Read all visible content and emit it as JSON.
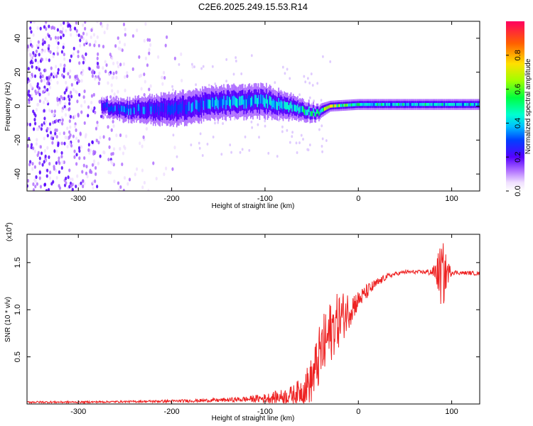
{
  "title": "C2E6.2025.249.15.53.R14",
  "chart_data": [
    {
      "type": "heatmap",
      "title": "C2E6.2025.249.15.53.R14",
      "xlabel": "Height of straight line (km)",
      "ylabel": "Frequency (Hz)",
      "xlim": [
        -355,
        130
      ],
      "ylim": [
        -50,
        50
      ],
      "x_ticks": [
        -300,
        -200,
        -100,
        0,
        100
      ],
      "y_ticks": [
        -40,
        -20,
        0,
        20,
        40
      ],
      "x_tick_labels": [
        "-300",
        "-200",
        "-100",
        "0",
        "100"
      ],
      "y_tick_labels": [
        "-40",
        "-20",
        "0",
        "20",
        "40"
      ],
      "colorbar": {
        "label": "Normalized spectral amplitude",
        "range": [
          0,
          1
        ],
        "ticks": [
          0.0,
          0.2,
          0.4,
          0.6,
          0.8
        ],
        "tick_labels": [
          "0.0",
          "0.2",
          "0.4",
          "0.6",
          "0.8"
        ]
      },
      "signal_band": {
        "description_points_x": [
          -275,
          -250,
          -200,
          -150,
          -100,
          -60,
          -45,
          -30,
          0,
          50,
          100,
          130
        ],
        "center_freq": [
          0,
          -2,
          -2,
          2,
          3,
          -2,
          -4,
          0,
          1,
          1,
          1,
          1
        ],
        "half_width": [
          3,
          4,
          6,
          6,
          6,
          4,
          3,
          2,
          2,
          2,
          2,
          2
        ],
        "amplitude": [
          0.3,
          0.35,
          0.3,
          0.4,
          0.45,
          0.45,
          0.5,
          0.7,
          0.5,
          0.45,
          0.45,
          0.45
        ]
      },
      "noise_extent_x": [
        -355,
        -170
      ]
    },
    {
      "type": "line",
      "xlabel": "Height of straight line (km)",
      "ylabel": "SNR (10 * v/v)",
      "y_scale_label": "(x10",
      "y_scale_exponent": "4",
      "xlim": [
        -355,
        130
      ],
      "ylim": [
        0,
        1.8
      ],
      "x_ticks": [
        -300,
        -200,
        -100,
        0,
        100
      ],
      "y_ticks": [
        0.5,
        1.0,
        1.5
      ],
      "x_tick_labels": [
        "-300",
        "-200",
        "-100",
        "0",
        "100"
      ],
      "y_tick_labels": [
        "0.5",
        "1.0",
        "1.5"
      ],
      "color": "#ee2222",
      "series": [
        {
          "name": "SNR",
          "x": [
            -355,
            -300,
            -250,
            -200,
            -150,
            -120,
            -100,
            -80,
            -70,
            -60,
            -50,
            -45,
            -40,
            -35,
            -30,
            -25,
            -20,
            -15,
            -10,
            -5,
            0,
            10,
            20,
            30,
            40,
            50,
            60,
            70,
            80,
            85,
            90,
            95,
            100,
            110,
            120,
            130
          ],
          "y": [
            0.02,
            0.02,
            0.025,
            0.03,
            0.04,
            0.05,
            0.06,
            0.08,
            0.1,
            0.15,
            0.25,
            0.4,
            0.55,
            0.65,
            0.75,
            0.85,
            0.9,
            0.95,
            1.0,
            1.05,
            1.1,
            1.2,
            1.28,
            1.35,
            1.38,
            1.4,
            1.4,
            1.4,
            1.4,
            1.4,
            1.35,
            1.4,
            1.4,
            1.39,
            1.39,
            1.38
          ],
          "noise_amplitude": [
            0.01,
            0.01,
            0.01,
            0.015,
            0.02,
            0.03,
            0.05,
            0.08,
            0.1,
            0.15,
            0.25,
            0.3,
            0.35,
            0.35,
            0.35,
            0.3,
            0.3,
            0.25,
            0.2,
            0.15,
            0.1,
            0.08,
            0.05,
            0.03,
            0.02,
            0.02,
            0.02,
            0.02,
            0.05,
            0.2,
            0.4,
            0.15,
            0.03,
            0.02,
            0.02,
            0.02
          ]
        }
      ]
    }
  ]
}
